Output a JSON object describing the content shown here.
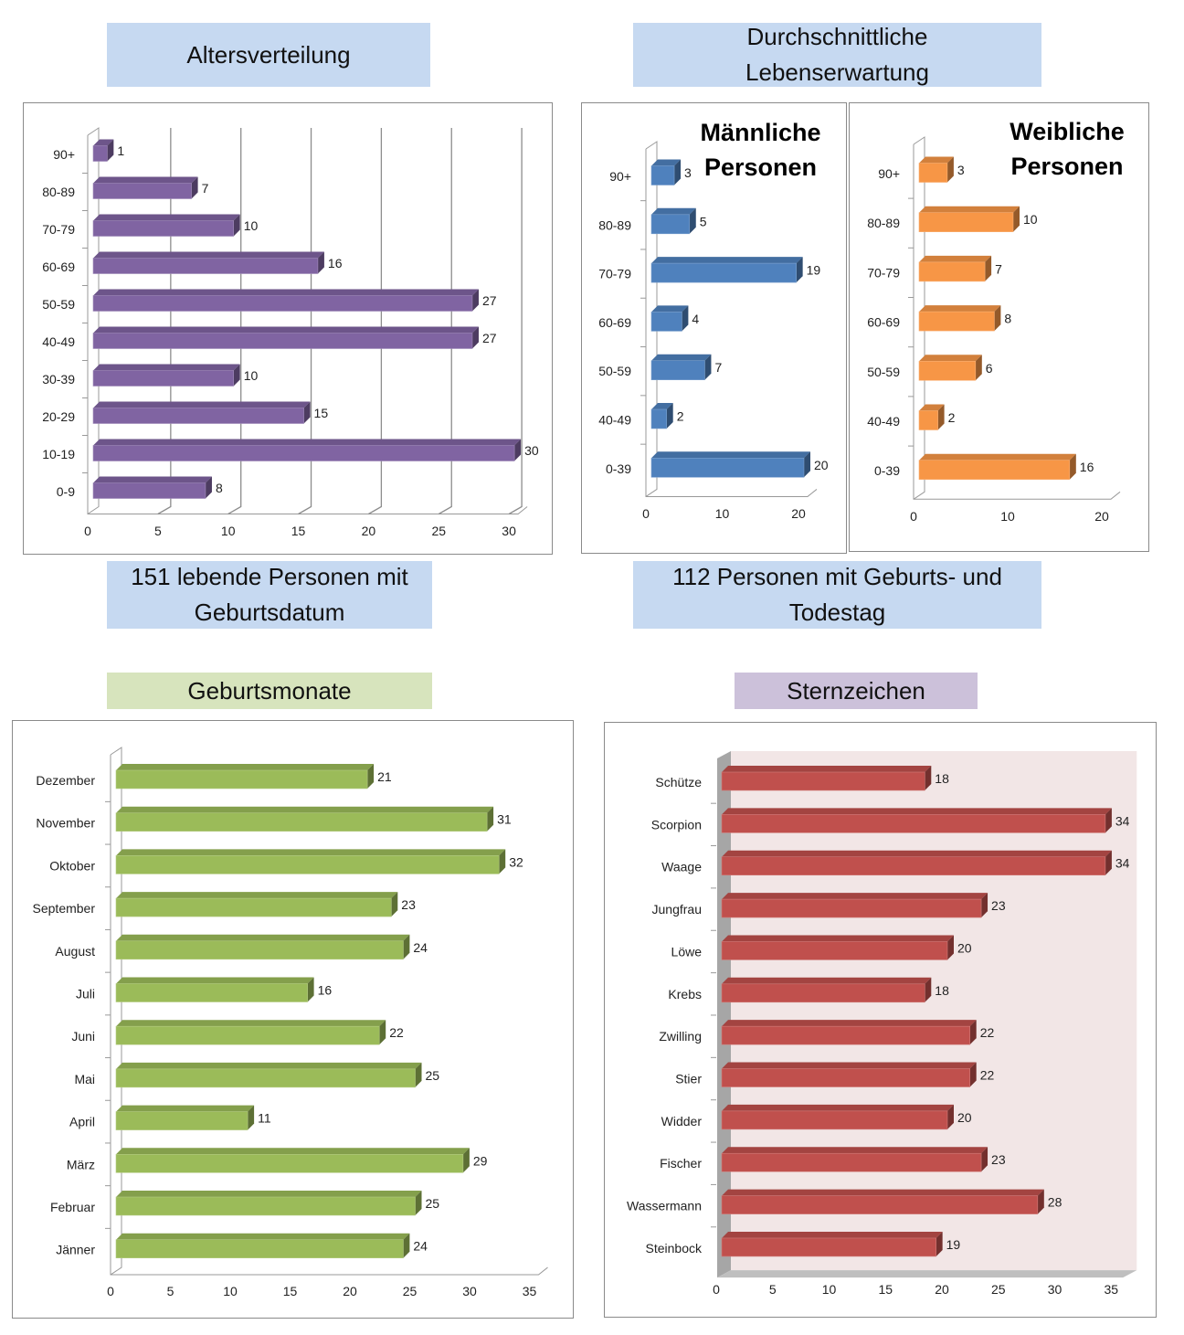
{
  "titles": {
    "age": "Altersverteilung",
    "life": "Durchschnittliche Lebenserwartung",
    "living": "151 lebende Personen mit Geburtsdatum",
    "deceased": "112 Personen mit Geburts- und Todestag",
    "months": "Geburtsmonate",
    "zodiac": "Sternzeichen"
  },
  "colors": {
    "age": "#8064a2",
    "male": "#4f81bd",
    "female": "#f79646",
    "months": "#9bbb59",
    "zodiac": "#c0504d",
    "title_blue": "#c6d9f1",
    "title_green": "#d7e4bd",
    "title_purple": "#ccc1da"
  },
  "chart_data": [
    {
      "type": "bar",
      "title": "Altersverteilung",
      "categories": [
        "90+",
        "80-89",
        "70-79",
        "60-69",
        "50-59",
        "40-49",
        "30-39",
        "20-29",
        "10-19",
        "0-9"
      ],
      "values": [
        1,
        7,
        10,
        16,
        27,
        27,
        10,
        15,
        30,
        8
      ],
      "xlim": [
        0,
        30
      ],
      "xticks": [
        "0",
        "5",
        "10",
        "15",
        "20",
        "25",
        "30"
      ],
      "grid": true
    },
    {
      "type": "bar",
      "title": "Männliche Personen",
      "categories": [
        "90+",
        "80-89",
        "70-79",
        "60-69",
        "50-59",
        "40-49",
        "0-39"
      ],
      "values": [
        3,
        5,
        19,
        4,
        7,
        2,
        20
      ],
      "xlim": [
        0,
        20
      ],
      "xticks": [
        "0",
        "10",
        "20"
      ],
      "grid": false
    },
    {
      "type": "bar",
      "title": "Weibliche Personen",
      "categories": [
        "90+",
        "80-89",
        "70-79",
        "60-69",
        "50-59",
        "40-49",
        "0-39"
      ],
      "values": [
        3,
        10,
        7,
        8,
        6,
        2,
        16
      ],
      "xlim": [
        0,
        20
      ],
      "xticks": [
        "0",
        "10",
        "20"
      ],
      "grid": false
    },
    {
      "type": "bar",
      "title": "Geburtsmonate",
      "categories": [
        "Dezember",
        "November",
        "Oktober",
        "September",
        "August",
        "Juli",
        "Juni",
        "Mai",
        "April",
        "März",
        "Februar",
        "Jänner"
      ],
      "values": [
        21,
        31,
        32,
        23,
        24,
        16,
        22,
        25,
        11,
        29,
        25,
        24
      ],
      "xlim": [
        0,
        35
      ],
      "xticks": [
        "0",
        "5",
        "10",
        "15",
        "20",
        "25",
        "30",
        "35"
      ],
      "grid": false
    },
    {
      "type": "bar",
      "title": "Sternzeichen",
      "categories": [
        "Schütze",
        "Scorpion",
        "Waage",
        "Jungfrau",
        "Löwe",
        "Krebs",
        "Zwilling",
        "Stier",
        "Widder",
        "Fischer",
        "Wassermann",
        "Steinbock"
      ],
      "values": [
        18,
        34,
        34,
        23,
        20,
        18,
        22,
        22,
        20,
        23,
        28,
        19
      ],
      "xlim": [
        0,
        35
      ],
      "xticks": [
        "0",
        "5",
        "10",
        "15",
        "20",
        "25",
        "30",
        "35"
      ],
      "grid": false
    }
  ],
  "subtitles": {
    "male": [
      "Männliche",
      "Personen"
    ],
    "female": [
      "Weibliche",
      "Personen"
    ]
  }
}
